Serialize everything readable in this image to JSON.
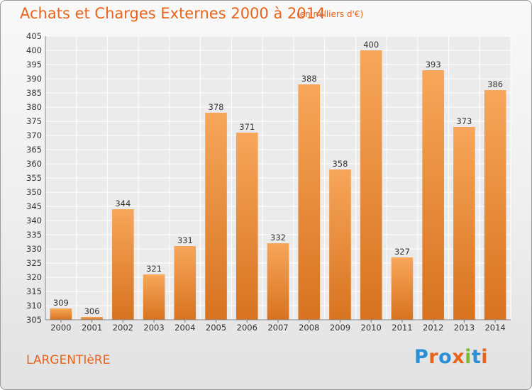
{
  "header": {
    "title": "Achats et Charges Externes 2000 à 2014",
    "unit": "(en milliers d'€)"
  },
  "footer": {
    "location": "LARGENTIèRE",
    "logo_text": "Proxiti",
    "logo_colors": [
      "#2a8fd6",
      "#e8641c",
      "#2a8fd6",
      "#e8641c",
      "#7dbb2a",
      "#2a8fd6",
      "#e8641c"
    ]
  },
  "colors": {
    "bar_light": "#f7a65a",
    "bar_dark": "#d77320",
    "accent": "#e8641c"
  },
  "chart_data": {
    "type": "bar",
    "title": "Achats et Charges Externes 2000 à 2014",
    "subtitle": "(en milliers d'€)",
    "categories": [
      "2000",
      "2001",
      "2002",
      "2003",
      "2004",
      "2005",
      "2006",
      "2007",
      "2008",
      "2009",
      "2010",
      "2011",
      "2012",
      "2013",
      "2014"
    ],
    "values": [
      309,
      306,
      344,
      321,
      331,
      378,
      371,
      332,
      388,
      358,
      400,
      327,
      393,
      373,
      386
    ],
    "ylim": [
      305,
      405
    ],
    "yticks": [
      305,
      310,
      315,
      320,
      325,
      330,
      335,
      340,
      345,
      350,
      355,
      360,
      365,
      370,
      375,
      380,
      385,
      390,
      395,
      400,
      405
    ],
    "grid": true,
    "data_labels": true
  }
}
